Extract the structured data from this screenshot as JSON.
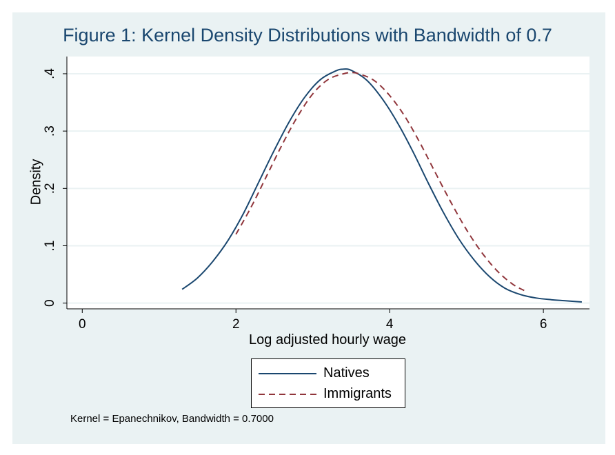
{
  "chart_data": {
    "type": "line",
    "title": "Figure 1: Kernel Density Distributions with Bandwidth of 0.7",
    "xlabel": "Log adjusted hourly wage",
    "ylabel": "Density",
    "xlim": [
      -0.2,
      6.6
    ],
    "ylim": [
      -0.01,
      0.43
    ],
    "x_ticks": [
      0,
      2,
      4,
      6
    ],
    "x_tick_labels": [
      "0",
      "2",
      "4",
      "6"
    ],
    "y_ticks": [
      0,
      0.1,
      0.2,
      0.3,
      0.4
    ],
    "y_tick_labels": [
      "0",
      ".1",
      ".2",
      ".3",
      ".4"
    ],
    "grid": "horizontal",
    "legend_position": "bottom",
    "series": [
      {
        "name": "Natives",
        "color": "#1a476f",
        "dash": "solid",
        "x": [
          1.3,
          1.5,
          1.7,
          1.9,
          2.1,
          2.3,
          2.5,
          2.7,
          2.9,
          3.1,
          3.3,
          3.4,
          3.5,
          3.7,
          3.9,
          4.1,
          4.3,
          4.5,
          4.7,
          4.9,
          5.1,
          5.3,
          5.5,
          5.7,
          5.9,
          6.1,
          6.3,
          6.5
        ],
        "y": [
          0.024,
          0.044,
          0.073,
          0.11,
          0.157,
          0.212,
          0.267,
          0.318,
          0.36,
          0.39,
          0.405,
          0.408,
          0.406,
          0.389,
          0.357,
          0.315,
          0.265,
          0.21,
          0.158,
          0.112,
          0.075,
          0.046,
          0.026,
          0.015,
          0.009,
          0.006,
          0.004,
          0.002
        ]
      },
      {
        "name": "Immigrants",
        "color": "#90353b",
        "dash": "dashed",
        "x": [
          2.0,
          2.2,
          2.4,
          2.6,
          2.8,
          3.0,
          3.2,
          3.4,
          3.5,
          3.6,
          3.8,
          4.0,
          4.2,
          4.4,
          4.6,
          4.8,
          5.0,
          5.2,
          5.4,
          5.6,
          5.75
        ],
        "y": [
          0.12,
          0.168,
          0.222,
          0.276,
          0.325,
          0.365,
          0.39,
          0.4,
          0.402,
          0.4,
          0.388,
          0.362,
          0.325,
          0.278,
          0.226,
          0.175,
          0.128,
          0.088,
          0.056,
          0.033,
          0.022
        ]
      }
    ],
    "annotation": "Kernel = Epanechnikov, Bandwidth = 0.7000"
  }
}
